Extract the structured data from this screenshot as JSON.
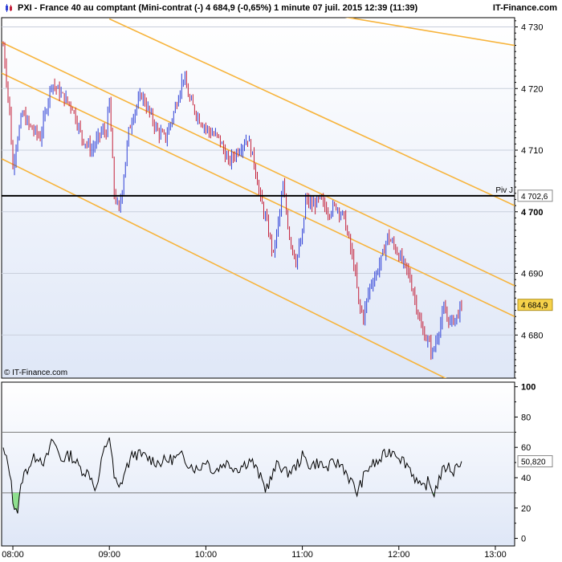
{
  "header": {
    "title": "PXI - France 40 au comptant (Mini-contrat  (-)    4 684,9 (-0,65%)     1 minute  07 juil. 2015 12:39 (11:39)",
    "brand": "IT-Finance.com",
    "watermark": "© IT-Finance.com",
    "up_color": "#2d3fd6",
    "down_color": "#c4213a"
  },
  "chart_data": [
    {
      "type": "candlestick",
      "title": "PXI - France 40 au comptant (Mini-contrat  (-)",
      "x_ticks": [
        "08:00",
        "09:00",
        "10:00",
        "11:00",
        "12:00",
        "13:00"
      ],
      "xlim": [
        "07:53",
        "13:12"
      ],
      "y_ticks": [
        "4 680",
        "4 690",
        "4 700",
        "4 710",
        "4 720",
        "4 730"
      ],
      "y_tick_values": [
        4680,
        4690,
        4700,
        4710,
        4720,
        4730
      ],
      "ylim": [
        4673,
        4731.5
      ],
      "last_price": 4684.9,
      "last_price_label": "4 684,9",
      "pivot": {
        "label": "Piv J",
        "value": 4702.6,
        "value_label": "4 702,6"
      },
      "close_anchors": [
        {
          "t": "07:54",
          "v": 4727
        },
        {
          "t": "07:58",
          "v": 4716
        },
        {
          "t": "08:00",
          "v": 4707
        },
        {
          "t": "08:02",
          "v": 4711
        },
        {
          "t": "08:06",
          "v": 4716
        },
        {
          "t": "08:10",
          "v": 4714
        },
        {
          "t": "08:17",
          "v": 4712
        },
        {
          "t": "08:24",
          "v": 4721
        },
        {
          "t": "08:30",
          "v": 4719
        },
        {
          "t": "08:37",
          "v": 4717
        },
        {
          "t": "08:43",
          "v": 4712
        },
        {
          "t": "08:49",
          "v": 4710
        },
        {
          "t": "08:55",
          "v": 4713
        },
        {
          "t": "08:58",
          "v": 4713
        },
        {
          "t": "09:00",
          "v": 4718
        },
        {
          "t": "09:03",
          "v": 4703
        },
        {
          "t": "09:06",
          "v": 4700
        },
        {
          "t": "09:09",
          "v": 4706
        },
        {
          "t": "09:12",
          "v": 4713
        },
        {
          "t": "09:15",
          "v": 4716
        },
        {
          "t": "09:20",
          "v": 4719
        },
        {
          "t": "09:25",
          "v": 4716
        },
        {
          "t": "09:30",
          "v": 4713
        },
        {
          "t": "09:35",
          "v": 4712
        },
        {
          "t": "09:40",
          "v": 4716
        },
        {
          "t": "09:46",
          "v": 4722
        },
        {
          "t": "09:50",
          "v": 4718
        },
        {
          "t": "09:56",
          "v": 4715
        },
        {
          "t": "10:02",
          "v": 4713
        },
        {
          "t": "10:08",
          "v": 4712
        },
        {
          "t": "10:14",
          "v": 4708
        },
        {
          "t": "10:20",
          "v": 4710
        },
        {
          "t": "10:26",
          "v": 4712
        },
        {
          "t": "10:30",
          "v": 4708
        },
        {
          "t": "10:34",
          "v": 4702
        },
        {
          "t": "10:38",
          "v": 4698
        },
        {
          "t": "10:42",
          "v": 4693
        },
        {
          "t": "10:46",
          "v": 4700
        },
        {
          "t": "10:48",
          "v": 4704
        },
        {
          "t": "10:52",
          "v": 4696
        },
        {
          "t": "10:56",
          "v": 4692
        },
        {
          "t": "11:00",
          "v": 4696
        },
        {
          "t": "11:02",
          "v": 4702
        },
        {
          "t": "11:06",
          "v": 4701
        },
        {
          "t": "11:11",
          "v": 4702
        },
        {
          "t": "11:16",
          "v": 4700
        },
        {
          "t": "11:21",
          "v": 4701
        },
        {
          "t": "11:26",
          "v": 4699
        },
        {
          "t": "11:30",
          "v": 4694
        },
        {
          "t": "11:33",
          "v": 4690
        },
        {
          "t": "11:35",
          "v": 4685
        },
        {
          "t": "11:38",
          "v": 4683
        },
        {
          "t": "11:42",
          "v": 4688
        },
        {
          "t": "11:46",
          "v": 4690
        },
        {
          "t": "11:50",
          "v": 4693
        },
        {
          "t": "11:53",
          "v": 4696
        },
        {
          "t": "11:58",
          "v": 4694
        },
        {
          "t": "12:02",
          "v": 4692
        },
        {
          "t": "12:06",
          "v": 4690
        },
        {
          "t": "12:10",
          "v": 4686
        },
        {
          "t": "12:14",
          "v": 4681
        },
        {
          "t": "12:18",
          "v": 4679
        },
        {
          "t": "12:21",
          "v": 4677
        },
        {
          "t": "12:25",
          "v": 4681
        },
        {
          "t": "12:28",
          "v": 4684
        },
        {
          "t": "12:32",
          "v": 4682
        },
        {
          "t": "12:36",
          "v": 4683
        },
        {
          "t": "12:39",
          "v": 4684.9
        }
      ],
      "trend_lines": [
        {
          "from": {
            "t": "07:53",
            "v": 4727.5
          },
          "to": {
            "t": "13:12",
            "v": 4688
          }
        },
        {
          "from": {
            "t": "07:53",
            "v": 4722.5
          },
          "to": {
            "t": "13:12",
            "v": 4683
          }
        },
        {
          "from": {
            "t": "07:53",
            "v": 4708.6
          },
          "to": {
            "t": "12:32",
            "v": 4672.6
          }
        },
        {
          "from": {
            "t": "09:00",
            "v": 4731.3
          },
          "to": {
            "t": "13:12",
            "v": 4701
          }
        },
        {
          "from": {
            "t": "09:00",
            "v": 4738
          },
          "to": {
            "t": "13:12",
            "v": 4727
          }
        }
      ]
    },
    {
      "type": "line",
      "y_ticks": [
        "0",
        "20",
        "40",
        "60",
        "80",
        "100"
      ],
      "y_tick_values": [
        0,
        20,
        40,
        60,
        80,
        100
      ],
      "ylim": [
        -5,
        103
      ],
      "overbought": 70,
      "oversold": 30,
      "last_value": 50.82,
      "last_value_label": "50,820",
      "anchors": [
        {
          "t": "07:54",
          "v": 58
        },
        {
          "t": "07:58",
          "v": 45
        },
        {
          "t": "08:00",
          "v": 25
        },
        {
          "t": "08:03",
          "v": 18
        },
        {
          "t": "08:06",
          "v": 40
        },
        {
          "t": "08:10",
          "v": 48
        },
        {
          "t": "08:15",
          "v": 55
        },
        {
          "t": "08:20",
          "v": 50
        },
        {
          "t": "08:25",
          "v": 65
        },
        {
          "t": "08:30",
          "v": 52
        },
        {
          "t": "08:36",
          "v": 55
        },
        {
          "t": "08:42",
          "v": 46
        },
        {
          "t": "08:48",
          "v": 42
        },
        {
          "t": "08:52",
          "v": 32
        },
        {
          "t": "08:56",
          "v": 55
        },
        {
          "t": "09:00",
          "v": 68
        },
        {
          "t": "09:03",
          "v": 40
        },
        {
          "t": "09:06",
          "v": 32
        },
        {
          "t": "09:10",
          "v": 45
        },
        {
          "t": "09:15",
          "v": 56
        },
        {
          "t": "09:22",
          "v": 54
        },
        {
          "t": "09:30",
          "v": 50
        },
        {
          "t": "09:38",
          "v": 52
        },
        {
          "t": "09:45",
          "v": 54
        },
        {
          "t": "09:50",
          "v": 49
        },
        {
          "t": "09:55",
          "v": 45
        },
        {
          "t": "10:00",
          "v": 52
        },
        {
          "t": "10:05",
          "v": 44
        },
        {
          "t": "10:12",
          "v": 50
        },
        {
          "t": "10:20",
          "v": 46
        },
        {
          "t": "10:28",
          "v": 52
        },
        {
          "t": "10:33",
          "v": 42
        },
        {
          "t": "10:37",
          "v": 33
        },
        {
          "t": "10:40",
          "v": 38
        },
        {
          "t": "10:45",
          "v": 50
        },
        {
          "t": "10:50",
          "v": 43
        },
        {
          "t": "10:55",
          "v": 46
        },
        {
          "t": "11:00",
          "v": 54
        },
        {
          "t": "11:05",
          "v": 48
        },
        {
          "t": "11:10",
          "v": 50
        },
        {
          "t": "11:15",
          "v": 46
        },
        {
          "t": "11:20",
          "v": 50
        },
        {
          "t": "11:25",
          "v": 48
        },
        {
          "t": "11:30",
          "v": 38
        },
        {
          "t": "11:34",
          "v": 30
        },
        {
          "t": "11:38",
          "v": 40
        },
        {
          "t": "11:42",
          "v": 48
        },
        {
          "t": "11:47",
          "v": 50
        },
        {
          "t": "11:52",
          "v": 56
        },
        {
          "t": "11:57",
          "v": 58
        },
        {
          "t": "12:02",
          "v": 52
        },
        {
          "t": "12:06",
          "v": 48
        },
        {
          "t": "12:10",
          "v": 40
        },
        {
          "t": "12:14",
          "v": 32
        },
        {
          "t": "12:18",
          "v": 37
        },
        {
          "t": "12:22",
          "v": 30
        },
        {
          "t": "12:26",
          "v": 42
        },
        {
          "t": "12:30",
          "v": 48
        },
        {
          "t": "12:34",
          "v": 44
        },
        {
          "t": "12:37",
          "v": 50
        },
        {
          "t": "12:39",
          "v": 50.82
        }
      ]
    }
  ]
}
